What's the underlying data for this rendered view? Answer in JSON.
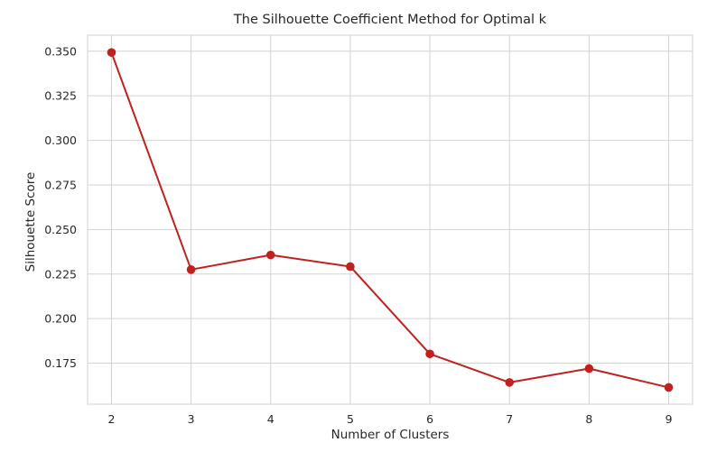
{
  "chart_data": {
    "type": "line",
    "title": "The Silhouette Coefficient Method for Optimal k",
    "xlabel": "Number of Clusters",
    "ylabel": "Silhouette Score",
    "x": [
      2,
      3,
      4,
      5,
      6,
      7,
      8,
      9
    ],
    "series": [
      {
        "values": [
          0.3493,
          0.2275,
          0.2357,
          0.2292,
          0.1802,
          0.1642,
          0.172,
          0.1614
        ]
      }
    ],
    "x_ticks": [
      "2",
      "3",
      "4",
      "5",
      "6",
      "7",
      "8",
      "9"
    ],
    "y_ticks": [
      "0.175",
      "0.200",
      "0.225",
      "0.250",
      "0.275",
      "0.300",
      "0.325",
      "0.350"
    ],
    "xlim": [
      1.7,
      9.3
    ],
    "ylim": [
      0.152,
      0.359
    ],
    "grid": true,
    "marker": "circle",
    "colors": {
      "line": "#c1201d",
      "grid": "#d2d2d2",
      "frame": "#d2d2d2",
      "background": "#ffffff",
      "text": "#262626"
    }
  }
}
